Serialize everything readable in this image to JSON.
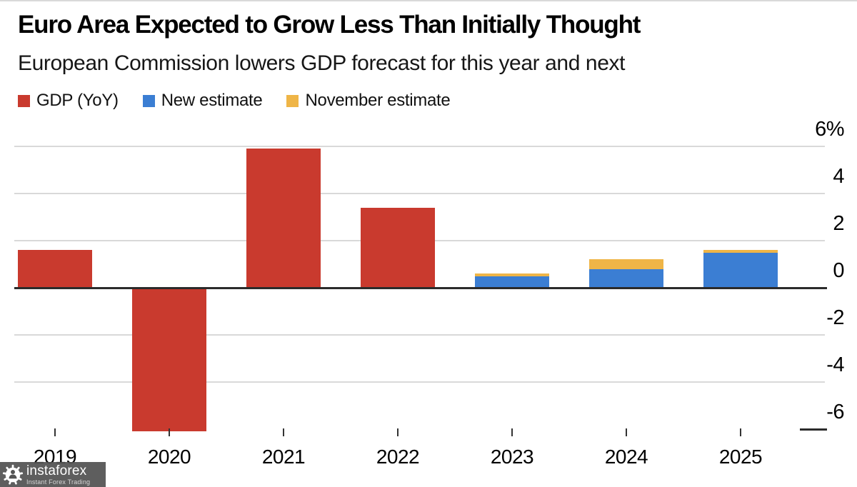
{
  "header": {
    "title": "Euro Area Expected to Grow Less Than Initially Thought",
    "subtitle": "European Commission lowers GDP forecast for this year and next"
  },
  "legend": {
    "items": [
      {
        "label": "GDP (YoY)",
        "color": "#c93a2e"
      },
      {
        "label": "New estimate",
        "color": "#3b7ed3"
      },
      {
        "label": "November estimate",
        "color": "#efb547"
      }
    ]
  },
  "watermark": {
    "brand": "instaforex",
    "tagline": "Instant Forex Trading"
  },
  "chart_data": {
    "type": "bar",
    "title": "Euro Area Expected to Grow Less Than Initially Thought",
    "subtitle": "European Commission lowers GDP forecast for this year and next",
    "categories": [
      "2019",
      "2020",
      "2021",
      "2022",
      "2023",
      "2024",
      "2025"
    ],
    "series": [
      {
        "name": "GDP (YoY)",
        "color": "#c93a2e",
        "values": [
          1.6,
          -6.1,
          5.9,
          3.4,
          null,
          null,
          null
        ]
      },
      {
        "name": "November estimate",
        "color": "#efb547",
        "values": [
          null,
          null,
          null,
          null,
          0.6,
          1.2,
          1.6
        ]
      },
      {
        "name": "New estimate",
        "color": "#3b7ed3",
        "values": [
          null,
          null,
          null,
          null,
          0.5,
          0.8,
          1.5
        ]
      }
    ],
    "overlay_note": "Forecast bars are overlaid (not stacked): blue 'New estimate' drawn in front of yellow 'November estimate', both anchored at zero",
    "ylabel": "",
    "xlabel": "",
    "unit": "%",
    "ylim": [
      -6.6,
      6
    ],
    "yticks": [
      {
        "value": 6,
        "label": "6%"
      },
      {
        "value": 4,
        "label": "4"
      },
      {
        "value": 2,
        "label": "2"
      },
      {
        "value": 0,
        "label": "0"
      },
      {
        "value": -2,
        "label": "-2"
      },
      {
        "value": -4,
        "label": "-4"
      },
      {
        "value": -6,
        "label": "-6"
      }
    ],
    "grid": "horizontal",
    "legend_position": "top-left",
    "axis_labels_side": "right"
  }
}
